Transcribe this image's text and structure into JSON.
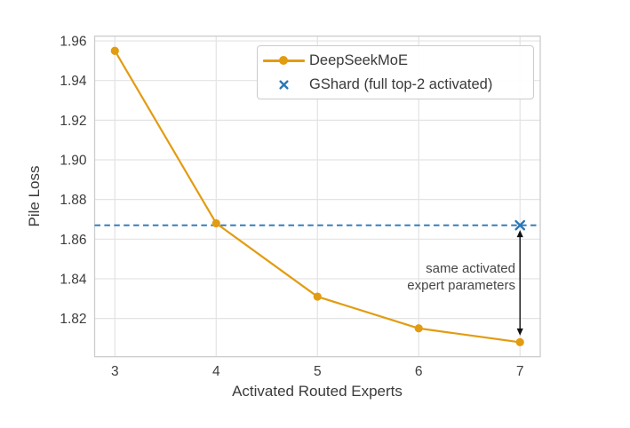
{
  "chart_data": {
    "type": "line",
    "title": "",
    "xlabel": "Activated Routed Experts",
    "ylabel": "Pile Loss",
    "xticks": [
      "3",
      "4",
      "5",
      "6",
      "7"
    ],
    "yticks": [
      "1.82",
      "1.84",
      "1.86",
      "1.88",
      "1.90",
      "1.92",
      "1.94",
      "1.96"
    ],
    "xlim": [
      2.8,
      7.2
    ],
    "ylim": [
      1.8007,
      1.9624
    ],
    "grid": true,
    "legend_position": "upper right inside",
    "series": [
      {
        "name": "DeepSeekMoE",
        "kind": "line",
        "marker": "circle",
        "style": "solid",
        "color": "#e29c12",
        "x": [
          3,
          4,
          5,
          6,
          7
        ],
        "values": [
          1.955,
          1.868,
          1.831,
          1.815,
          1.808
        ]
      },
      {
        "name": "GShard (full top-2 activated)",
        "kind": "hline",
        "marker": "x",
        "style": "dashed",
        "color": "#2a77b6",
        "y": 1.867,
        "marker_x": 7
      }
    ],
    "annotation": {
      "text_lines": [
        "same activated",
        "expert parameters"
      ],
      "arrow_x": 7,
      "arrow_from_y": 1.867,
      "arrow_to_y": 1.808
    },
    "colors": {
      "grid": "#e3e3e3",
      "spine": "#cccccc",
      "arrow": "#111111",
      "text": "#3a3a3a"
    }
  }
}
